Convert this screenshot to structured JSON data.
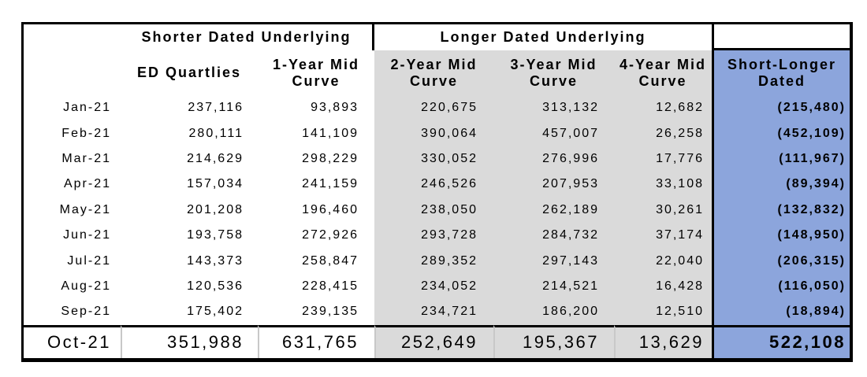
{
  "table": {
    "group_headers": {
      "shorter_dated": "Shorter Dated Underlying",
      "longer_dated": "Longer Dated Underlying"
    },
    "columns": {
      "ed": "ED Quartlies",
      "y1": "1-Year Mid Curve",
      "y2": "2-Year Mid Curve",
      "y3": "3-Year Mid Curve",
      "y4": "4-Year Mid Curve",
      "sl": "Short-Longer Dated"
    },
    "rows": [
      {
        "month": "Jan-21",
        "ed": "237,116",
        "y1": "93,893",
        "y2": "220,675",
        "y3": "313,132",
        "y4": "12,682",
        "sl": "(215,480)"
      },
      {
        "month": "Feb-21",
        "ed": "280,111",
        "y1": "141,109",
        "y2": "390,064",
        "y3": "457,007",
        "y4": "26,258",
        "sl": "(452,109)"
      },
      {
        "month": "Mar-21",
        "ed": "214,629",
        "y1": "298,229",
        "y2": "330,052",
        "y3": "276,996",
        "y4": "17,776",
        "sl": "(111,967)"
      },
      {
        "month": "Apr-21",
        "ed": "157,034",
        "y1": "241,159",
        "y2": "246,526",
        "y3": "207,953",
        "y4": "33,108",
        "sl": "(89,394)"
      },
      {
        "month": "May-21",
        "ed": "201,208",
        "y1": "196,460",
        "y2": "238,050",
        "y3": "262,189",
        "y4": "30,261",
        "sl": "(132,832)"
      },
      {
        "month": "Jun-21",
        "ed": "193,758",
        "y1": "272,926",
        "y2": "293,728",
        "y3": "284,732",
        "y4": "37,174",
        "sl": "(148,950)"
      },
      {
        "month": "Jul-21",
        "ed": "143,373",
        "y1": "258,847",
        "y2": "289,352",
        "y3": "297,143",
        "y4": "22,040",
        "sl": "(206,315)"
      },
      {
        "month": "Aug-21",
        "ed": "120,536",
        "y1": "228,415",
        "y2": "234,052",
        "y3": "214,521",
        "y4": "16,428",
        "sl": "(116,050)"
      },
      {
        "month": "Sep-21",
        "ed": "175,402",
        "y1": "239,135",
        "y2": "234,721",
        "y3": "186,200",
        "y4": "12,510",
        "sl": "(18,894)"
      }
    ],
    "total": {
      "month": "Oct-21",
      "ed": "351,988",
      "y1": "631,765",
      "y2": "252,649",
      "y3": "195,367",
      "y4": "13,629",
      "sl": "522,108"
    }
  },
  "colors": {
    "longer_section_bg": "#DADADA",
    "short_longer_bg": "#8CA5DC",
    "border": "#000000",
    "total_separator": "#C8C8C8"
  }
}
